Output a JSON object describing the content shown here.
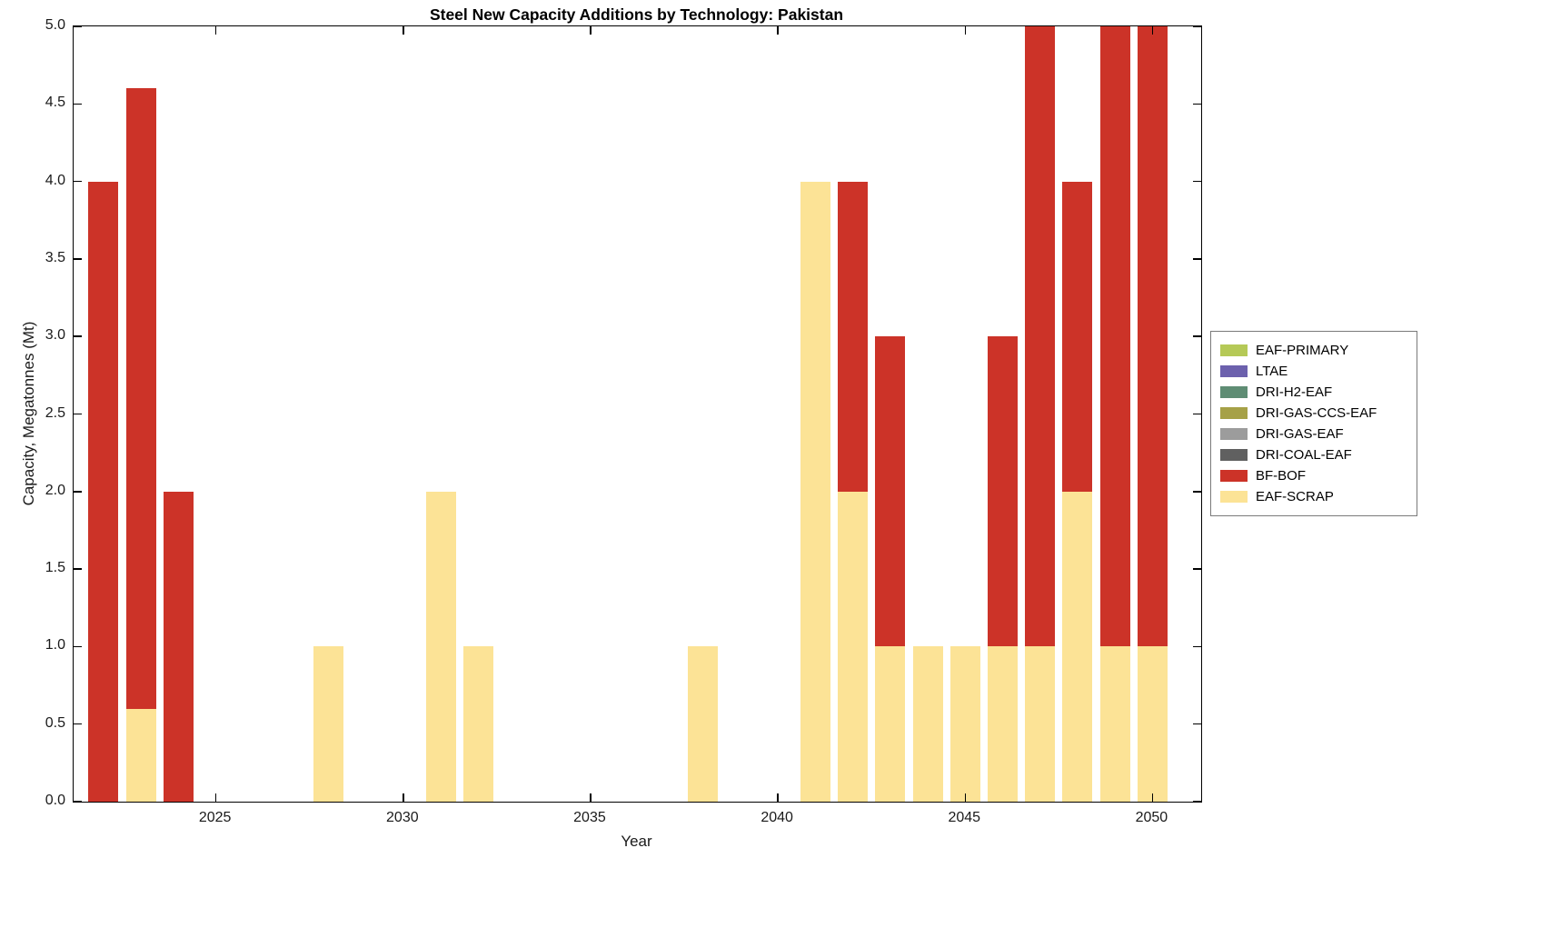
{
  "chart_data": {
    "type": "bar",
    "stacked": true,
    "title": "Steel New Capacity Additions by Technology: Pakistan",
    "xlabel": "Year",
    "ylabel": "Capacity, Megatonnes (Mt)",
    "xlim": [
      2021.2,
      2051.3
    ],
    "ylim": [
      0,
      5
    ],
    "xticks": [
      2025,
      2030,
      2035,
      2040,
      2045,
      2050
    ],
    "ytick_step": 0.5,
    "ytick_labels": [
      "0.0",
      "0.5",
      "1.0",
      "1.5",
      "2.0",
      "2.5",
      "3.0",
      "3.5",
      "4.0",
      "4.5",
      "5.0"
    ],
    "bar_width_years": 0.8,
    "grid": false,
    "legend_position": "right-outside",
    "axis_color": "#000000",
    "colors": {
      "EAF-PRIMARY": "#b5c957",
      "LTAE": "#6c61ad",
      "DRI-H2-EAF": "#5f8d74",
      "DRI-GAS-CCS-EAF": "#a6a147",
      "DRI-GAS-EAF": "#9c9c9c",
      "DRI-COAL-EAF": "#606060",
      "BF-BOF": "#cc3328",
      "EAF-SCRAP": "#fce396"
    },
    "legend": [
      "EAF-PRIMARY",
      "LTAE",
      "DRI-H2-EAF",
      "DRI-GAS-CCS-EAF",
      "DRI-GAS-EAF",
      "DRI-COAL-EAF",
      "BF-BOF",
      "EAF-SCRAP"
    ],
    "bars": [
      {
        "year": 2022,
        "segments": [
          {
            "tech": "BF-BOF",
            "value": 4.0
          }
        ]
      },
      {
        "year": 2023,
        "segments": [
          {
            "tech": "EAF-SCRAP",
            "value": 0.6
          },
          {
            "tech": "BF-BOF",
            "value": 4.0
          }
        ]
      },
      {
        "year": 2024,
        "segments": [
          {
            "tech": "BF-BOF",
            "value": 2.0
          }
        ]
      },
      {
        "year": 2028,
        "segments": [
          {
            "tech": "EAF-SCRAP",
            "value": 1.0
          }
        ]
      },
      {
        "year": 2031,
        "segments": [
          {
            "tech": "EAF-SCRAP",
            "value": 2.0
          }
        ]
      },
      {
        "year": 2032,
        "segments": [
          {
            "tech": "EAF-SCRAP",
            "value": 1.0
          }
        ]
      },
      {
        "year": 2038,
        "segments": [
          {
            "tech": "EAF-SCRAP",
            "value": 1.0
          }
        ]
      },
      {
        "year": 2041,
        "segments": [
          {
            "tech": "EAF-SCRAP",
            "value": 4.0
          }
        ]
      },
      {
        "year": 2042,
        "segments": [
          {
            "tech": "EAF-SCRAP",
            "value": 2.0
          },
          {
            "tech": "BF-BOF",
            "value": 2.0
          }
        ]
      },
      {
        "year": 2043,
        "segments": [
          {
            "tech": "EAF-SCRAP",
            "value": 1.0
          },
          {
            "tech": "BF-BOF",
            "value": 2.0
          }
        ]
      },
      {
        "year": 2044,
        "segments": [
          {
            "tech": "EAF-SCRAP",
            "value": 1.0
          }
        ]
      },
      {
        "year": 2045,
        "segments": [
          {
            "tech": "EAF-SCRAP",
            "value": 1.0
          }
        ]
      },
      {
        "year": 2046,
        "segments": [
          {
            "tech": "EAF-SCRAP",
            "value": 1.0
          },
          {
            "tech": "BF-BOF",
            "value": 2.0
          }
        ]
      },
      {
        "year": 2047,
        "segments": [
          {
            "tech": "EAF-SCRAP",
            "value": 1.0
          },
          {
            "tech": "BF-BOF",
            "value": 4.0
          }
        ]
      },
      {
        "year": 2048,
        "segments": [
          {
            "tech": "EAF-SCRAP",
            "value": 2.0
          },
          {
            "tech": "BF-BOF",
            "value": 2.0
          }
        ]
      },
      {
        "year": 2049,
        "segments": [
          {
            "tech": "EAF-SCRAP",
            "value": 1.0
          },
          {
            "tech": "BF-BOF",
            "value": 4.0
          }
        ]
      },
      {
        "year": 2050,
        "segments": [
          {
            "tech": "EAF-SCRAP",
            "value": 1.0
          },
          {
            "tech": "BF-BOF",
            "value": 4.0
          }
        ]
      }
    ]
  }
}
